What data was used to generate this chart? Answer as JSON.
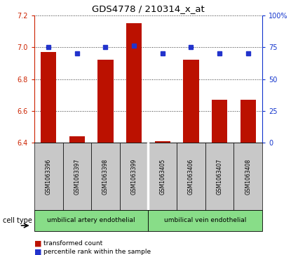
{
  "title": "GDS4778 / 210314_x_at",
  "samples": [
    "GSM1063396",
    "GSM1063397",
    "GSM1063398",
    "GSM1063399",
    "GSM1063405",
    "GSM1063406",
    "GSM1063407",
    "GSM1063408"
  ],
  "bar_values": [
    6.97,
    6.44,
    6.92,
    7.15,
    6.41,
    6.92,
    6.67,
    6.67
  ],
  "percentile_values": [
    75,
    70,
    75,
    76,
    70,
    75,
    70,
    70
  ],
  "ylim_left": [
    6.4,
    7.2
  ],
  "ylim_right": [
    0,
    100
  ],
  "yticks_left": [
    6.4,
    6.6,
    6.8,
    7.0,
    7.2
  ],
  "yticks_right": [
    0,
    25,
    50,
    75,
    100
  ],
  "ytick_labels_right": [
    "0",
    "25",
    "50",
    "75",
    "100%"
  ],
  "bar_color": "#bb1100",
  "dot_color": "#2233cc",
  "bar_width": 0.55,
  "group1_label": "umbilical artery endothelial",
  "group2_label": "umbilical vein endothelial",
  "group_color": "#88dd88",
  "legend_bar_label": "transformed count",
  "legend_dot_label": "percentile rank within the sample",
  "cell_type_label": "cell type",
  "left_tick_color": "#cc2200",
  "right_tick_color": "#1133cc",
  "grid_linestyle": ":",
  "grid_color": "#333333",
  "grid_linewidth": 0.7,
  "sample_box_color": "#c8c8c8",
  "figwidth": 4.25,
  "figheight": 3.63,
  "dpi": 100
}
